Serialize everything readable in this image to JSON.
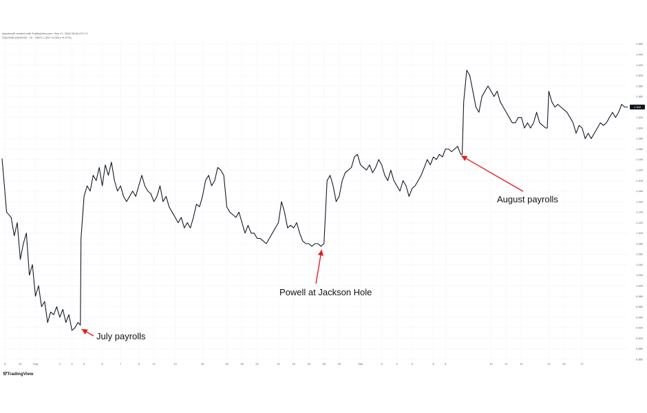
{
  "header": {
    "line1": "davidsouth created with TradingView.com, Sep 17, 2025 09:48 UTC+0",
    "line2": "ZQU2026-ZQH2025 · 15 · CBOT  1.340  +0.005 (+0.37%)"
  },
  "footer": {
    "brand": "TradingView",
    "logo_glyph": "𝟏𝟕"
  },
  "chart_data": {
    "type": "line",
    "series": [
      {
        "values": [
          [
            0,
            1.242
          ],
          [
            1.5,
            1.14
          ],
          [
            3,
            1.13
          ],
          [
            4,
            1.095
          ],
          [
            5,
            1.12
          ],
          [
            6,
            1.05
          ],
          [
            7,
            1.08
          ],
          [
            8,
            1.1
          ],
          [
            9,
            1.02
          ],
          [
            10,
            1.04
          ],
          [
            11,
            0.98
          ],
          [
            12,
            1.0
          ],
          [
            13,
            0.96
          ],
          [
            14,
            0.97
          ],
          [
            15,
            0.93
          ],
          [
            16,
            0.95
          ],
          [
            17,
            0.945
          ],
          [
            18,
            0.96
          ],
          [
            19,
            0.94
          ],
          [
            20,
            0.955
          ],
          [
            21,
            0.93
          ],
          [
            22,
            0.945
          ],
          [
            23,
            0.915
          ],
          [
            24,
            0.92
          ],
          [
            25,
            0.93
          ],
          [
            25.8,
            0.925
          ],
          [
            26,
            1.09
          ],
          [
            27,
            1.17
          ],
          [
            28,
            1.19
          ],
          [
            29,
            1.18
          ],
          [
            30,
            1.21
          ],
          [
            31,
            1.2
          ],
          [
            32,
            1.225
          ],
          [
            33,
            1.19
          ],
          [
            34,
            1.23
          ],
          [
            35,
            1.21
          ],
          [
            36,
            1.235
          ],
          [
            37,
            1.2
          ],
          [
            38,
            1.18
          ],
          [
            39,
            1.19
          ],
          [
            40,
            1.17
          ],
          [
            41,
            1.16
          ],
          [
            42,
            1.17
          ],
          [
            43,
            1.18
          ],
          [
            44,
            1.17
          ],
          [
            45,
            1.19
          ],
          [
            46,
            1.21
          ],
          [
            47,
            1.19
          ],
          [
            48,
            1.18
          ],
          [
            49,
            1.175
          ],
          [
            50,
            1.16
          ],
          [
            51,
            1.17
          ],
          [
            52,
            1.19
          ],
          [
            53,
            1.16
          ],
          [
            54,
            1.17
          ],
          [
            55,
            1.15
          ],
          [
            56,
            1.14
          ],
          [
            57,
            1.13
          ],
          [
            58,
            1.12
          ],
          [
            59,
            1.13
          ],
          [
            60,
            1.11
          ],
          [
            61,
            1.12
          ],
          [
            62,
            1.11
          ],
          [
            63,
            1.13
          ],
          [
            64,
            1.155
          ],
          [
            65,
            1.15
          ],
          [
            66,
            1.17
          ],
          [
            67,
            1.2
          ],
          [
            68,
            1.21
          ],
          [
            69,
            1.19
          ],
          [
            70,
            1.2
          ],
          [
            71,
            1.225
          ],
          [
            72,
            1.22
          ],
          [
            73,
            1.21
          ],
          [
            74,
            1.15
          ],
          [
            75,
            1.14
          ],
          [
            76,
            1.135
          ],
          [
            77,
            1.13
          ],
          [
            78,
            1.14
          ],
          [
            79,
            1.12
          ],
          [
            80,
            1.1
          ],
          [
            81,
            1.115
          ],
          [
            82,
            1.1
          ],
          [
            83,
            1.1
          ],
          [
            84,
            1.09
          ],
          [
            85,
            1.09
          ],
          [
            86,
            1.085
          ],
          [
            87,
            1.08
          ],
          [
            88,
            1.09
          ],
          [
            89,
            1.1
          ],
          [
            90,
            1.11
          ],
          [
            91,
            1.12
          ],
          [
            92,
            1.16
          ],
          [
            93,
            1.14
          ],
          [
            94,
            1.11
          ],
          [
            95,
            1.115
          ],
          [
            96,
            1.11
          ],
          [
            97,
            1.12
          ],
          [
            98,
            1.1
          ],
          [
            99,
            1.085
          ],
          [
            100,
            1.08
          ],
          [
            101,
            1.08
          ],
          [
            102,
            1.075
          ],
          [
            103,
            1.08
          ],
          [
            104,
            1.08
          ],
          [
            105,
            1.075
          ],
          [
            106,
            1.08
          ],
          [
            107,
            1.2
          ],
          [
            108,
            1.21
          ],
          [
            109,
            1.19
          ],
          [
            110,
            1.16
          ],
          [
            111,
            1.17
          ],
          [
            112,
            1.2
          ],
          [
            113,
            1.215
          ],
          [
            114,
            1.22
          ],
          [
            115,
            1.225
          ],
          [
            116,
            1.245
          ],
          [
            117,
            1.25
          ],
          [
            118,
            1.23
          ],
          [
            119,
            1.225
          ],
          [
            120,
            1.22
          ],
          [
            121,
            1.23
          ],
          [
            122,
            1.215
          ],
          [
            123,
            1.225
          ],
          [
            124,
            1.24
          ],
          [
            125,
            1.23
          ],
          [
            126,
            1.21
          ],
          [
            127,
            1.2
          ],
          [
            128,
            1.22
          ],
          [
            129,
            1.2
          ],
          [
            130,
            1.19
          ],
          [
            131,
            1.18
          ],
          [
            132,
            1.2
          ],
          [
            133,
            1.19
          ],
          [
            134,
            1.17
          ],
          [
            135,
            1.185
          ],
          [
            136,
            1.19
          ],
          [
            137,
            1.2
          ],
          [
            138,
            1.21
          ],
          [
            139,
            1.225
          ],
          [
            140,
            1.24
          ],
          [
            141,
            1.23
          ],
          [
            142,
            1.245
          ],
          [
            143,
            1.24
          ],
          [
            144,
            1.25
          ],
          [
            145,
            1.245
          ],
          [
            146,
            1.26
          ],
          [
            147,
            1.26
          ],
          [
            148,
            1.255
          ],
          [
            149,
            1.26
          ],
          [
            150,
            1.265
          ],
          [
            151,
            1.25
          ],
          [
            151.5,
            1.25
          ],
          [
            152,
            1.35
          ],
          [
            153,
            1.41
          ],
          [
            154,
            1.4
          ],
          [
            155,
            1.37
          ],
          [
            156,
            1.34
          ],
          [
            157,
            1.33
          ],
          [
            158,
            1.36
          ],
          [
            159,
            1.37
          ],
          [
            160,
            1.38
          ],
          [
            161,
            1.37
          ],
          [
            162,
            1.36
          ],
          [
            163,
            1.37
          ],
          [
            164,
            1.35
          ],
          [
            165,
            1.34
          ],
          [
            166,
            1.33
          ],
          [
            167,
            1.32
          ],
          [
            168,
            1.31
          ],
          [
            169,
            1.31
          ],
          [
            170,
            1.32
          ],
          [
            171,
            1.32
          ],
          [
            172,
            1.3
          ],
          [
            173,
            1.31
          ],
          [
            174,
            1.3
          ],
          [
            175,
            1.31
          ],
          [
            176,
            1.33
          ],
          [
            177,
            1.31
          ],
          [
            178,
            1.305
          ],
          [
            179,
            1.3
          ],
          [
            179.5,
            1.3
          ],
          [
            180,
            1.37
          ],
          [
            181,
            1.35
          ],
          [
            182,
            1.34
          ],
          [
            183,
            1.345
          ],
          [
            184,
            1.34
          ],
          [
            185,
            1.335
          ],
          [
            186,
            1.33
          ],
          [
            187,
            1.32
          ],
          [
            188,
            1.31
          ],
          [
            189,
            1.29
          ],
          [
            190,
            1.305
          ],
          [
            191,
            1.3
          ],
          [
            192,
            1.28
          ],
          [
            193,
            1.29
          ],
          [
            194,
            1.28
          ],
          [
            195,
            1.29
          ],
          [
            196,
            1.3
          ],
          [
            197,
            1.31
          ],
          [
            198,
            1.305
          ],
          [
            199,
            1.31
          ],
          [
            200,
            1.32
          ],
          [
            201,
            1.33
          ],
          [
            202,
            1.32
          ],
          [
            203,
            1.33
          ],
          [
            204,
            1.345
          ],
          [
            205,
            1.34
          ],
          [
            206,
            1.34
          ]
        ]
      }
    ],
    "x": {
      "ticks": [
        [
          1,
          "8"
        ],
        [
          6,
          "22"
        ],
        [
          11,
          "Aug"
        ],
        [
          19,
          "2"
        ],
        [
          23,
          "4"
        ],
        [
          27,
          "5"
        ],
        [
          33,
          "6"
        ],
        [
          39,
          "7"
        ],
        [
          45,
          "8"
        ],
        [
          50,
          "11"
        ],
        [
          57,
          "13"
        ],
        [
          66,
          "15"
        ],
        [
          74,
          "18"
        ],
        [
          79,
          "20"
        ],
        [
          84,
          "21"
        ],
        [
          91,
          "22"
        ],
        [
          96,
          "23"
        ],
        [
          101,
          "26"
        ],
        [
          106,
          "28"
        ],
        [
          111,
          "29"
        ],
        [
          118,
          "Sep"
        ],
        [
          125,
          "3"
        ],
        [
          130,
          "4"
        ],
        [
          135,
          "5"
        ],
        [
          142,
          "8"
        ],
        [
          146,
          "9"
        ],
        [
          161,
          "10"
        ],
        [
          166,
          "11"
        ],
        [
          171,
          "12"
        ],
        [
          180,
          "13"
        ],
        [
          185,
          "16"
        ],
        [
          191,
          "17"
        ]
      ]
    },
    "y": {
      "min": 0.86,
      "max": 1.465,
      "ticks": [
        1.46,
        1.44,
        1.42,
        1.4,
        1.38,
        1.36,
        1.34,
        1.32,
        1.3,
        1.28,
        1.26,
        1.24,
        1.22,
        1.2,
        1.18,
        1.16,
        1.14,
        1.12,
        1.1,
        1.08,
        1.06,
        1.04,
        1.02,
        1.0,
        0.98,
        0.96,
        0.94,
        0.92,
        0.9,
        0.88,
        0.86
      ],
      "tick_labels": [
        "1.460",
        "1.440",
        "1.420",
        "1.400",
        "1.380",
        "1.360",
        "1.340",
        "1.320",
        "1.300",
        "1.280",
        "1.260",
        "1.240",
        "1.220",
        "1.200",
        "1.180",
        "1.160",
        "1.140",
        "1.120",
        "1.100",
        "1.080",
        "1.060",
        "1.040",
        "1.020",
        "1.000",
        "0.980",
        "0.960",
        "0.940",
        "0.920",
        "0.900",
        "0.880",
        "0.860"
      ]
    },
    "last_value": {
      "value": 1.34,
      "label": "1.340",
      "color": "#131722"
    },
    "grid": true,
    "line_color": "#131722",
    "annotations": [
      {
        "text": "July payrolls",
        "target": [
          25.5,
          0.92
        ]
      },
      {
        "text": "Powell at Jackson Hole",
        "target": [
          105,
          1.075
        ]
      },
      {
        "text": "August payrolls",
        "target": [
          150.5,
          1.25
        ]
      }
    ],
    "arrow_color": "#e02020"
  }
}
